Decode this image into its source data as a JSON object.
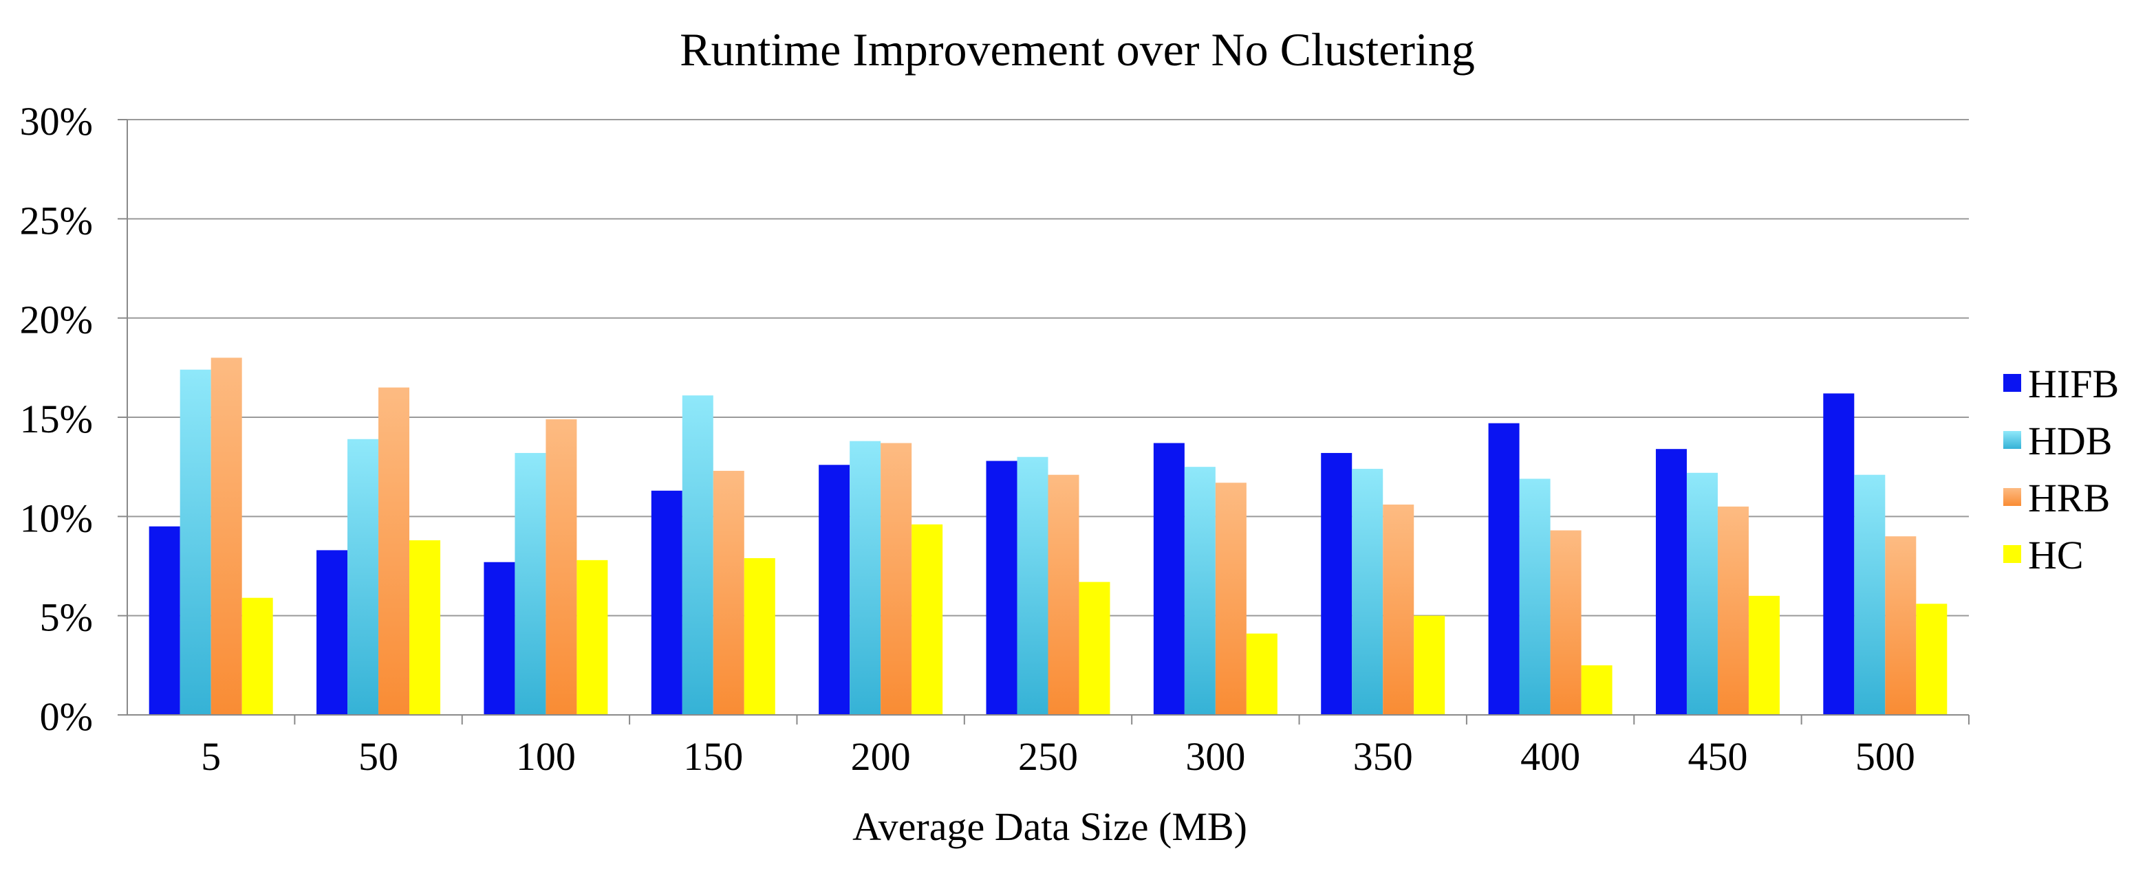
{
  "chart_data": {
    "type": "bar",
    "title": "Runtime Improvement over No Clustering",
    "xlabel": "Average Data Size (MB)",
    "ylabel": "",
    "categories": [
      "5",
      "50",
      "100",
      "150",
      "200",
      "250",
      "300",
      "350",
      "400",
      "450",
      "500"
    ],
    "yticks": [
      "0%",
      "5%",
      "10%",
      "15%",
      "20%",
      "25%",
      "30%"
    ],
    "ylim": [
      0,
      30
    ],
    "y_unit": "%",
    "grid": true,
    "legend_position": "right",
    "series": [
      {
        "name": "HIFB",
        "color": "#0A14F2",
        "values": [
          9.5,
          8.3,
          7.7,
          11.3,
          12.6,
          12.8,
          13.7,
          13.2,
          14.7,
          13.4,
          16.2
        ]
      },
      {
        "name": "HDB",
        "color": "#5CD2F0",
        "values": [
          17.4,
          13.9,
          13.2,
          16.1,
          13.8,
          13.0,
          12.5,
          12.4,
          11.9,
          12.2,
          12.1
        ]
      },
      {
        "name": "HRB",
        "color": "#FA9A4E",
        "values": [
          18.0,
          16.5,
          14.9,
          12.3,
          13.7,
          12.1,
          11.7,
          10.6,
          9.3,
          10.5,
          9.0
        ]
      },
      {
        "name": "HC",
        "color": "#FFFF00",
        "values": [
          5.9,
          8.8,
          7.8,
          7.9,
          9.6,
          6.7,
          4.1,
          5.0,
          2.5,
          6.0,
          5.6
        ]
      }
    ]
  }
}
